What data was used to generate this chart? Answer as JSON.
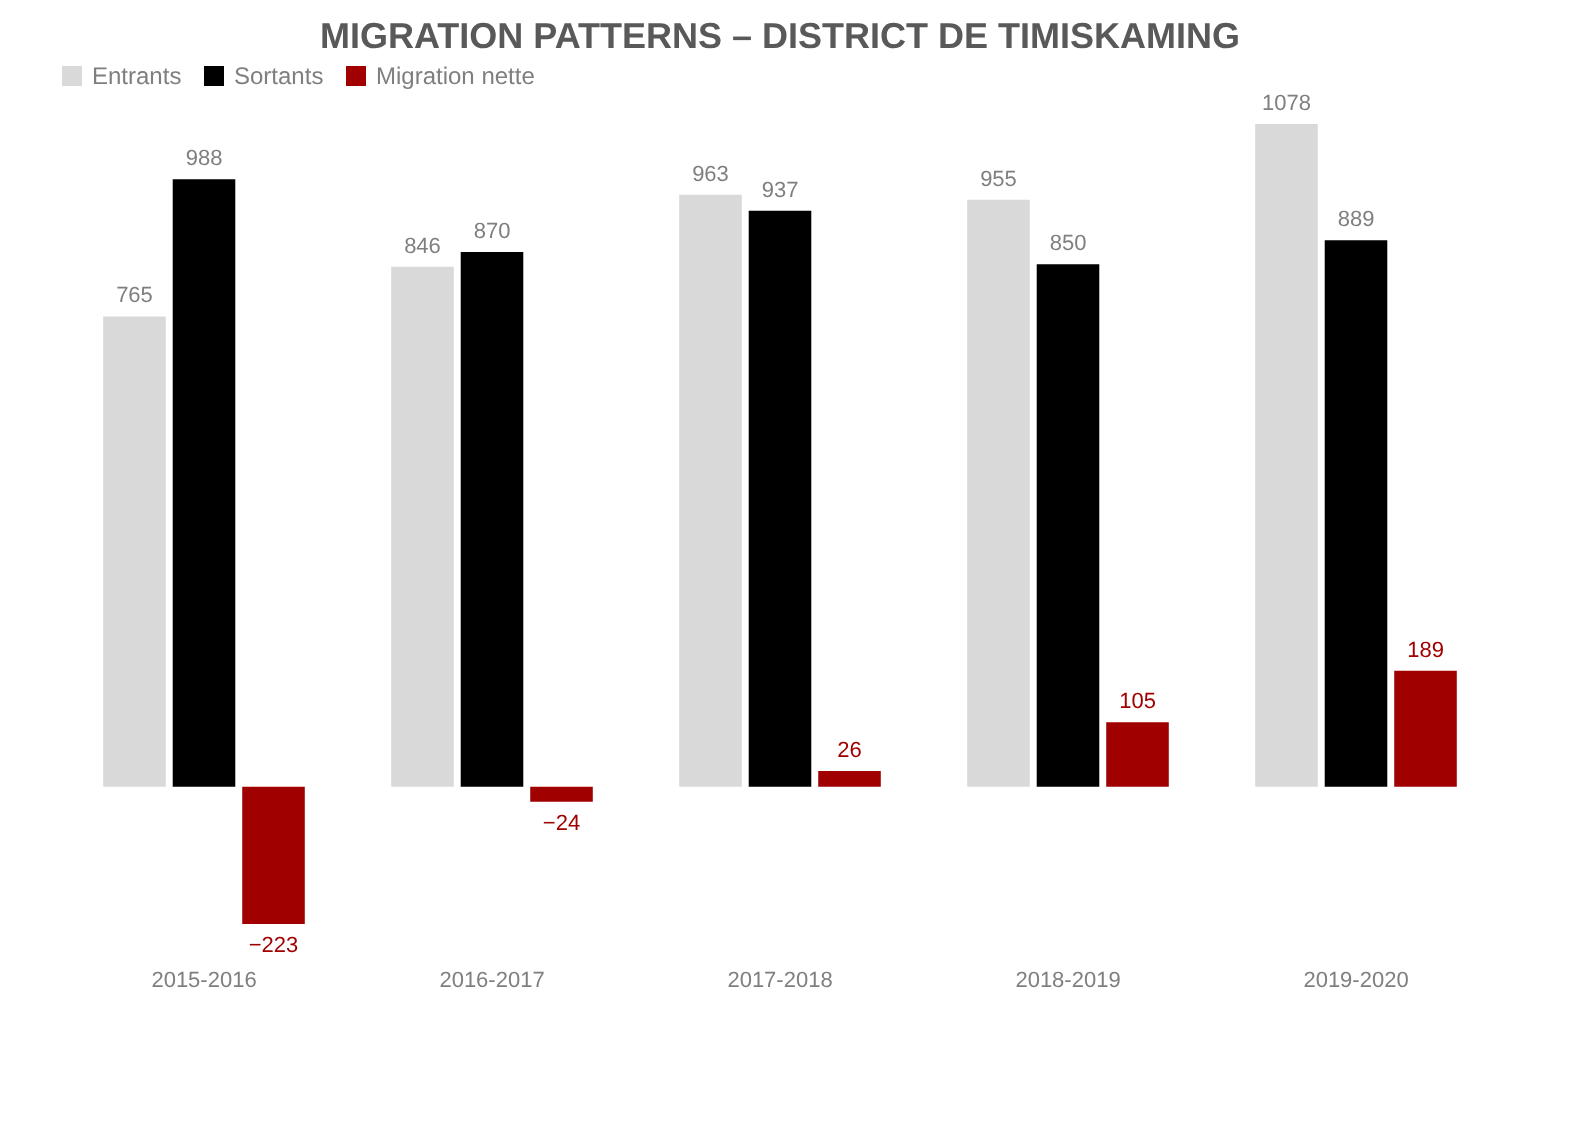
{
  "chart_data": {
    "type": "bar",
    "title": "MIGRATION PATTERNS – DISTRICT DE TIMISKAMING",
    "categories": [
      "2015-2016",
      "2016-2017",
      "2017-2018",
      "2018-2019",
      "2019-2020"
    ],
    "series": [
      {
        "name": "Entrants",
        "color": "#d9d9d9",
        "values": [
          765,
          846,
          963,
          955,
          1078
        ]
      },
      {
        "name": "Sortants",
        "color": "#000000",
        "values": [
          988,
          870,
          937,
          850,
          889
        ]
      },
      {
        "name": "Migration nette",
        "color": "#a00000",
        "values": [
          -223,
          -24,
          26,
          105,
          189
        ]
      }
    ],
    "data_labels": true,
    "legend": "top",
    "grid": false
  }
}
